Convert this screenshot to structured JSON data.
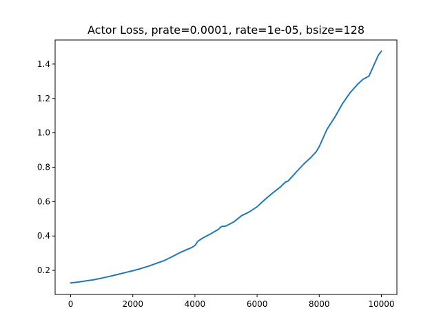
{
  "chart_data": {
    "type": "line",
    "title": "Actor Loss, prate=0.0001, rate=1e-05, bsize=128",
    "xlabel": "",
    "ylabel": "",
    "xlim": [
      -500,
      10500
    ],
    "ylim": [
      0.06,
      1.54
    ],
    "grid": false,
    "legend": "none",
    "xticks": [
      0,
      2000,
      4000,
      6000,
      8000,
      10000
    ],
    "yticks": [
      0.2,
      0.4,
      0.6,
      0.8,
      1.0,
      1.2,
      1.4
    ],
    "xtick_labels": [
      "0",
      "2000",
      "4000",
      "6000",
      "8000",
      "10000"
    ],
    "ytick_labels": [
      "0.2",
      "0.4",
      "0.6",
      "0.8",
      "1.0",
      "1.2",
      "1.4"
    ],
    "series": [
      {
        "color": "#1f77b4",
        "x": [
          0,
          250,
          500,
          750,
          1000,
          1250,
          1500,
          1750,
          2000,
          2250,
          2500,
          2750,
          3000,
          3250,
          3500,
          3750,
          3900,
          4000,
          4100,
          4250,
          4500,
          4750,
          4850,
          5000,
          5250,
          5500,
          5750,
          6000,
          6250,
          6500,
          6750,
          6900,
          7000,
          7250,
          7500,
          7750,
          7900,
          8000,
          8250,
          8500,
          8750,
          9000,
          9250,
          9400,
          9500,
          9600,
          9750,
          9900,
          10000
        ],
        "y": [
          0.127,
          0.132,
          0.139,
          0.146,
          0.155,
          0.165,
          0.176,
          0.187,
          0.198,
          0.21,
          0.224,
          0.24,
          0.256,
          0.278,
          0.302,
          0.322,
          0.333,
          0.345,
          0.37,
          0.388,
          0.412,
          0.438,
          0.455,
          0.458,
          0.482,
          0.518,
          0.54,
          0.57,
          0.612,
          0.65,
          0.685,
          0.712,
          0.72,
          0.77,
          0.818,
          0.86,
          0.89,
          0.92,
          1.02,
          1.09,
          1.17,
          1.235,
          1.285,
          1.31,
          1.32,
          1.33,
          1.39,
          1.45,
          1.475
        ]
      }
    ]
  }
}
